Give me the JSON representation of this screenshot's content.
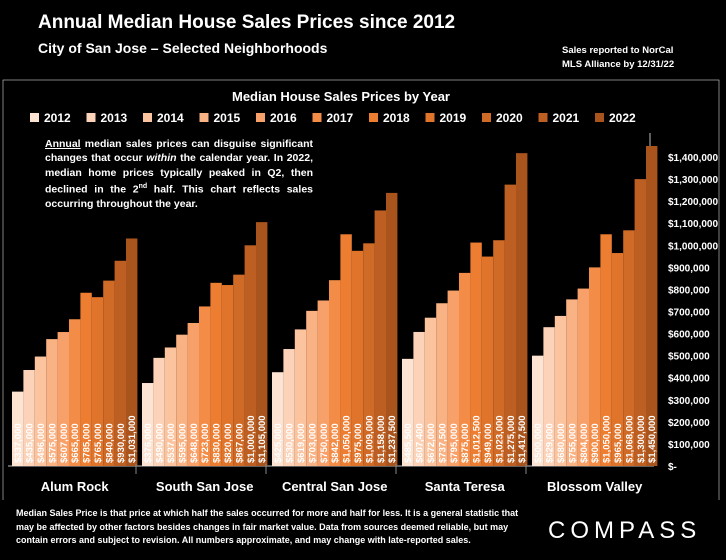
{
  "header": {
    "title": "Annual Median House Sales Prices since 2012",
    "subtitle": "City of San Jose – Selected Neighborhoods",
    "note_line1": "Sales reported to NorCal",
    "note_line2": "MLS Alliance by 12/31/22"
  },
  "annotation": {
    "word_annual": "Annual",
    "part1": " median sales prices can disguise significant changes that occur ",
    "word_within": "within",
    "part2": " the calendar year. In 2022, median home prices typically peaked in Q2, then declined in the 2",
    "sup": "nd",
    "part3": " half. This chart reflects sales occurring throughout the year."
  },
  "footer": {
    "text": "Median Sales Price is that price at which half the sales occurred for more and half for less. It is a general statistic that may be affected by other factors besides changes in fair market value. Data from sources deemed reliable, but may contain errors and subject to revision.  All numbers approximate, and may change with late-reported sales.",
    "logo": "COMPASS"
  },
  "chart_data": {
    "type": "bar",
    "title": "Median House Sales Prices by Year",
    "categories": [
      "Alum Rock",
      "South San Jose",
      "Central San Jose",
      "Santa Teresa",
      "Blossom Valley"
    ],
    "series": [
      {
        "name": "2012",
        "color": "#fde3d2",
        "values": [
          337000,
          376000,
          425000,
          485500,
          500000
        ]
      },
      {
        "name": "2013",
        "color": "#fcd3b8",
        "values": [
          435000,
          490000,
          530000,
          607400,
          629000
        ]
      },
      {
        "name": "2014",
        "color": "#fbc39e",
        "values": [
          496000,
          537000,
          619000,
          672000,
          680000
        ]
      },
      {
        "name": "2015",
        "color": "#f9b284",
        "values": [
          575000,
          595000,
          703000,
          737500,
          755000
        ]
      },
      {
        "name": "2016",
        "color": "#f7a06a",
        "values": [
          607000,
          648000,
          750000,
          795000,
          804000
        ]
      },
      {
        "name": "2017",
        "color": "#f28c47",
        "values": [
          665000,
          723000,
          842000,
          875000,
          900000
        ]
      },
      {
        "name": "2018",
        "color": "#ed7d31",
        "values": [
          785000,
          830000,
          1050000,
          1012500,
          1050000
        ]
      },
      {
        "name": "2019",
        "color": "#e0742b",
        "values": [
          765000,
          820000,
          975000,
          949000,
          965000
        ]
      },
      {
        "name": "2020",
        "color": "#d06a27",
        "values": [
          840000,
          867000,
          1009000,
          1023000,
          1068000
        ]
      },
      {
        "name": "2021",
        "color": "#bd5f22",
        "values": [
          930000,
          1000000,
          1158000,
          1275000,
          1300000
        ]
      },
      {
        "name": "2022",
        "color": "#a9541d",
        "values": [
          1031000,
          1105000,
          1237500,
          1417500,
          1450000
        ]
      }
    ],
    "bar_labels": [
      [
        "$337,000",
        "$435,000",
        "$496,000",
        "$575,000",
        "$607,000",
        "$665,000",
        "$785,000",
        "$765,000",
        "$840,000",
        "$930,000",
        "$1,031,000"
      ],
      [
        "$376,000",
        "$490,000",
        "$537,000",
        "$595,000",
        "$648,000",
        "$723,000",
        "$830,000",
        "$820,000",
        "$867,000",
        "$1,000,000",
        "$1,105,000"
      ],
      [
        "$425,000",
        "$530,000",
        "$619,000",
        "$703,000",
        "$750,000",
        "$842,000",
        "$1,050,000",
        "$975,000",
        "$1,009,000",
        "$1,158,000",
        "$1,237,500"
      ],
      [
        "$485,500",
        "$607,400",
        "$672,000",
        "$737,500",
        "$795,000",
        "$875,000",
        "$1,012,500",
        "$949,000",
        "$1,023,000",
        "$1,275,000",
        "$1,417,500"
      ],
      [
        "$500,000",
        "$629,000",
        "$680,000",
        "$755,000",
        "$804,000",
        "$900,000",
        "$1,050,000",
        "$965,000",
        "$1,068,000",
        "$1,300,000",
        "$1,450,000"
      ]
    ],
    "ylim": [
      0,
      1450000
    ],
    "y_ticks": [
      0,
      100000,
      200000,
      300000,
      400000,
      500000,
      600000,
      700000,
      800000,
      900000,
      1000000,
      1100000,
      1200000,
      1300000,
      1400000
    ],
    "y_tick_labels": [
      "$-",
      "$100,000",
      "$200,000",
      "$300,000",
      "$400,000",
      "$500,000",
      "$600,000",
      "$700,000",
      "$800,000",
      "$900,000",
      "$1,000,000",
      "$1,100,000",
      "$1,200,000",
      "$1,300,000",
      "$1,400,000"
    ],
    "y_axis_side": "right",
    "legend_position": "top",
    "grid": false
  }
}
